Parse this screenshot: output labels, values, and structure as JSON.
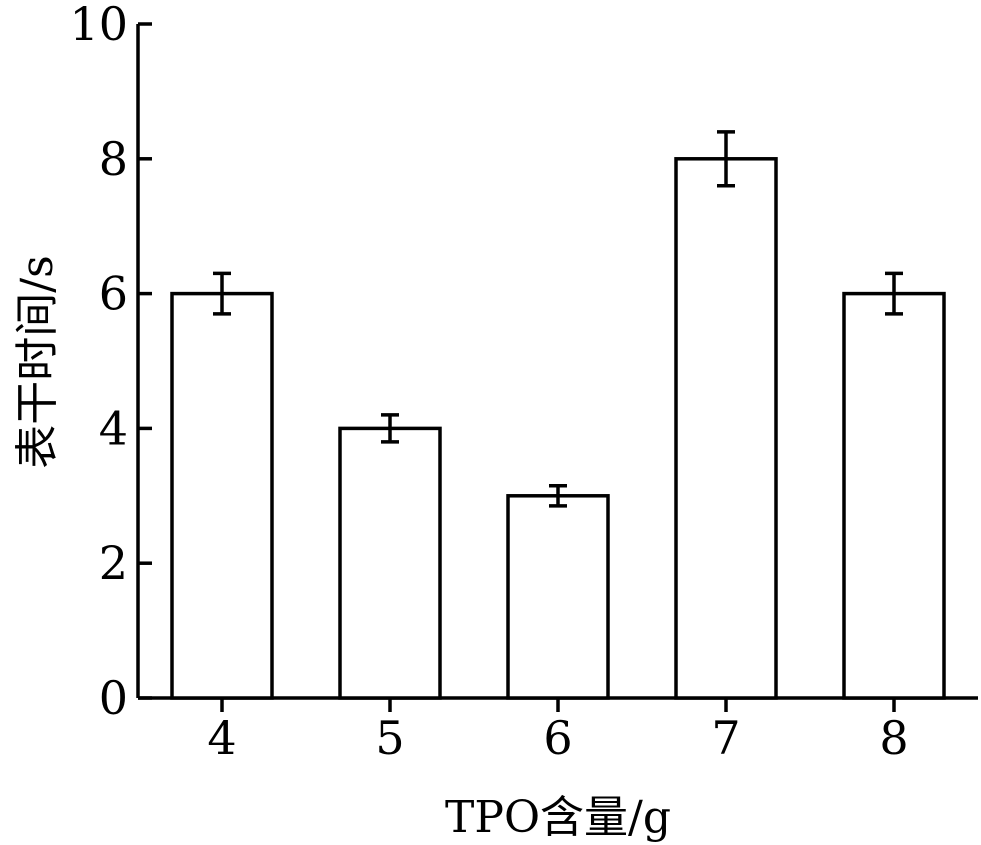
{
  "chart_data": {
    "type": "bar",
    "categories": [
      "4",
      "5",
      "6",
      "7",
      "8"
    ],
    "values": [
      6,
      4,
      3,
      8,
      6
    ],
    "errors": [
      0.3,
      0.2,
      0.15,
      0.4,
      0.3
    ],
    "xlabel": "TPO含量/g",
    "ylabel": "表干时间/s",
    "ylim": [
      0,
      10
    ],
    "yticks": [
      "0",
      "2",
      "4",
      "6",
      "8",
      "10"
    ],
    "grid": false,
    "legend": "none",
    "bar_fill": "#ffffff",
    "stroke_color": "#000000"
  }
}
